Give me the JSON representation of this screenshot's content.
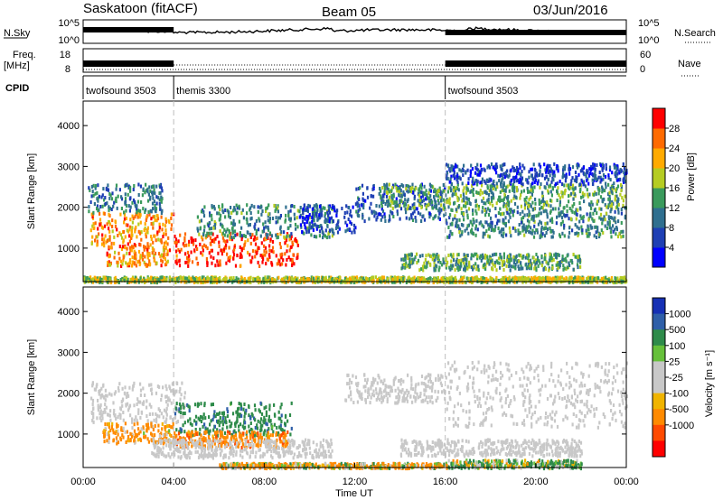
{
  "header": {
    "site": "Saskatoon (fitACF)",
    "beam": "Beam 05",
    "date": "03/Jun/2016"
  },
  "aux_panels": {
    "nsky_label": "N.Sky",
    "nsearch_label": "N.Search",
    "freq_label_1": "Freq.",
    "freq_label_2": "[MHz]",
    "nave_label": "Nave",
    "cpid_label": "CPID",
    "noise_ticks_left": [
      "10^5",
      "10^0"
    ],
    "noise_ticks_right": [
      "10^5",
      "10^0"
    ],
    "freq_ticks_left": [
      "18",
      "8"
    ],
    "freq_ticks_right": [
      "60",
      "0"
    ],
    "cpid_segments": [
      {
        "label": "twofsound 3503",
        "start_hour": 0,
        "end_hour": 4
      },
      {
        "label": "themis 3300",
        "start_hour": 4,
        "end_hour": 16
      },
      {
        "label": "twofsound 3503",
        "start_hour": 16,
        "end_hour": 24
      }
    ]
  },
  "chart_data": [
    {
      "type": "heatmap",
      "title": "",
      "ylabel": "Slant Range [km]",
      "xlabel": "",
      "ylim": [
        180,
        4600
      ],
      "xlim": [
        0,
        24
      ],
      "yticks": [
        "1000",
        "2000",
        "3000",
        "4000"
      ],
      "colorbar": {
        "label": "Power [dB]",
        "levels": [
          0,
          4,
          8,
          12,
          16,
          20,
          24,
          28,
          32
        ],
        "tick_labels": [
          "4",
          "8",
          "12",
          "16",
          "20",
          "24",
          "28"
        ],
        "colors": [
          "#0000ff",
          "#1e3fb4",
          "#2f6f8f",
          "#3a9a5c",
          "#b5cc22",
          "#ffaa00",
          "#ff6a00",
          "#ff0000"
        ]
      },
      "echo_regions": [
        {
          "t0": 0.3,
          "t1": 4.0,
          "r0": 1100,
          "r1": 1900,
          "level": 24
        },
        {
          "t0": 1.0,
          "t1": 3.8,
          "r0": 600,
          "r1": 1100,
          "level": 24
        },
        {
          "t0": 4.0,
          "t1": 9.5,
          "r0": 600,
          "r1": 1400,
          "level": 28
        },
        {
          "t0": 0.2,
          "t1": 3.5,
          "r0": 1900,
          "r1": 2600,
          "level": 10
        },
        {
          "t0": 5.0,
          "t1": 11.0,
          "r0": 1300,
          "r1": 2100,
          "level": 12
        },
        {
          "t0": 9.5,
          "t1": 12.0,
          "r0": 1400,
          "r1": 2100,
          "level": 6
        },
        {
          "t0": 12.0,
          "t1": 16.0,
          "r0": 1700,
          "r1": 2600,
          "level": 8
        },
        {
          "t0": 13.0,
          "t1": 24.0,
          "r0": 2000,
          "r1": 2600,
          "level": 14
        },
        {
          "t0": 16.0,
          "t1": 24.0,
          "r0": 1300,
          "r1": 2000,
          "level": 12
        },
        {
          "t0": 16.0,
          "t1": 24.0,
          "r0": 2600,
          "r1": 3100,
          "level": 6
        },
        {
          "t0": 14.0,
          "t1": 22.0,
          "r0": 500,
          "r1": 900,
          "level": 14
        },
        {
          "t0": 0.0,
          "t1": 24.0,
          "r0": 200,
          "r1": 330,
          "level": 18
        }
      ]
    },
    {
      "type": "heatmap",
      "title": "",
      "ylabel": "Slant Range [km]",
      "xlabel": "Time UT",
      "ylim": [
        180,
        4600
      ],
      "xlim": [
        0,
        24
      ],
      "yticks": [
        "1000",
        "2000",
        "3000",
        "4000"
      ],
      "xticks": [
        "00:00",
        "04:00",
        "08:00",
        "12:00",
        "16:00",
        "20:00",
        "00:00"
      ],
      "colorbar": {
        "label": "Velocity [m s⁻¹]",
        "tick_labels": [
          "1000",
          "500",
          "100",
          "25",
          "-25",
          "-100",
          "-500",
          "-1000"
        ],
        "colors": [
          "#1630b4",
          "#2f5fa8",
          "#2e8b4a",
          "#66c03a",
          "#c8c8c8",
          "#c8c8c8",
          "#f0b400",
          "#ff8a00",
          "#ff4a00",
          "#ff0000"
        ]
      },
      "echo_regions": [
        {
          "t0": 0.3,
          "t1": 4.5,
          "r0": 1300,
          "r1": 2300,
          "velocity": 0
        },
        {
          "t0": 0.8,
          "t1": 4.0,
          "r0": 800,
          "r1": 1300,
          "velocity": -120
        },
        {
          "t0": 4.0,
          "t1": 9.2,
          "r0": 1000,
          "r1": 1800,
          "velocity": 200
        },
        {
          "t0": 4.0,
          "t1": 9.0,
          "r0": 700,
          "r1": 1100,
          "velocity": -200
        },
        {
          "t0": 3.0,
          "t1": 11.0,
          "r0": 450,
          "r1": 900,
          "velocity": 0
        },
        {
          "t0": 11.5,
          "t1": 16.0,
          "r0": 1800,
          "r1": 2500,
          "velocity": 0
        },
        {
          "t0": 16.0,
          "t1": 24.0,
          "r0": 1200,
          "r1": 2800,
          "velocity": 0
        },
        {
          "t0": 14.0,
          "t1": 22.0,
          "r0": 500,
          "r1": 900,
          "velocity": 0
        },
        {
          "t0": 16.0,
          "t1": 22.0,
          "r0": 200,
          "r1": 400,
          "velocity": 60
        },
        {
          "t0": 6.0,
          "t1": 16.0,
          "r0": 200,
          "r1": 320,
          "velocity": -60
        }
      ]
    }
  ]
}
